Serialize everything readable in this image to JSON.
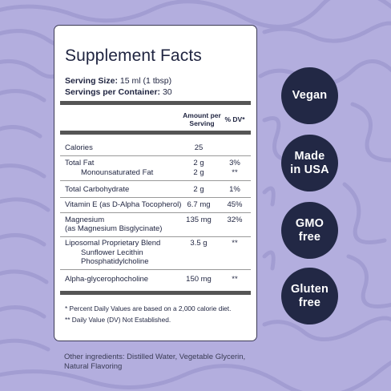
{
  "panel": {
    "title": "Supplement Facts",
    "serving_size_label": "Serving Size:",
    "serving_size_value": "15 ml (1 tbsp)",
    "servings_label": "Servings per Container:",
    "servings_value": "30",
    "col_amount": "Amount per Serving",
    "col_dv": "% DV*",
    "rows": [
      {
        "name": "Calories",
        "amount": "25",
        "dv": ""
      },
      {
        "name": "Total Fat",
        "amount": "2 g",
        "dv": "3%"
      },
      {
        "name": "Monounsaturated Fat",
        "amount": "2 g",
        "dv": "**"
      },
      {
        "name": "Total Carbohydrate",
        "amount": "2 g",
        "dv": "1%"
      },
      {
        "name": "Vitamin E (as D-Alpha Tocopherol)",
        "amount": "6.7 mg",
        "dv": "45%"
      },
      {
        "name": "Magnesium",
        "name2": "(as Magnesium Bisglycinate)",
        "amount": "135 mg",
        "dv": "32%"
      },
      {
        "name": "Liposomal Proprietary Blend",
        "amount": "3.5 g",
        "dv": "**"
      },
      {
        "name": "Sunflower Lecithin",
        "name2": "Phosphatidylcholine",
        "amount": "",
        "dv": ""
      },
      {
        "name": "Alpha-glycerophocholine",
        "amount": "150 mg",
        "dv": "**"
      }
    ],
    "footnote1": "* Percent Daily Values are based on a 2,000 calorie diet.",
    "footnote2": "** Daily Value (DV) Not Established."
  },
  "other_ingredients": "Other ingredients: Distilled Water, Vegetable Glycerin, Natural Flavoring",
  "badges": [
    {
      "line1": "Vegan",
      "line2": ""
    },
    {
      "line1": "Made",
      "line2": "in USA"
    },
    {
      "line1": "GMO",
      "line2": "free"
    },
    {
      "line1": "Gluten",
      "line2": "free"
    }
  ],
  "colors": {
    "background": "#b3aede",
    "badge": "#222845",
    "text": "#1f2440"
  }
}
